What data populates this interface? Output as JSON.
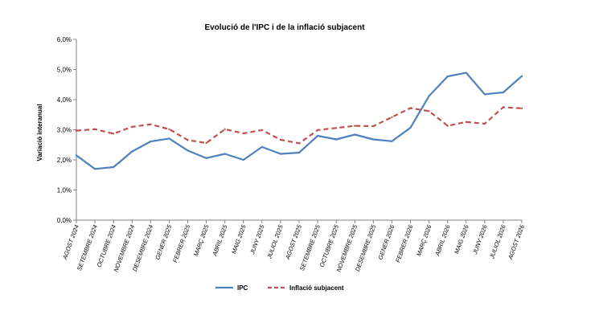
{
  "chart_data": {
    "type": "line",
    "title": "Evolució de l'IPC i de la inflació subjacent",
    "xlabel": "",
    "ylabel": "Variació interanual",
    "ylim": [
      0,
      6
    ],
    "yticks": [
      "0,0%",
      "1,0%",
      "2,0%",
      "3,0%",
      "4,0%",
      "5,0%",
      "6,0%"
    ],
    "grid": false,
    "legend_position": "bottom",
    "categories": [
      "AGOST 2024",
      "SETEMBRE 2024",
      "OCTUBRE 2024",
      "NOVEMBRE 2024",
      "DESEMBRE 2024",
      "GENER 2025",
      "FEBRER 2025",
      "MARÇ 2025",
      "ABRIL 2025",
      "MAIG 2025",
      "JUNY 2025",
      "JULIOL 2025",
      "AGOST 2025",
      "SETEMBRE 2025",
      "OCTUBRE 2025",
      "NOVEMBRE 2025",
      "DESEMBRE 2025",
      "GENER 2026",
      "FEBRER 2026",
      "MARÇ 2026",
      "ABRIL 2026",
      "MAIG 2026",
      "JUNY 2026",
      "JULIOL 2026",
      "AGOST 2026"
    ],
    "series": [
      {
        "name": "IPC",
        "color": "#4f81bd",
        "style": "solid",
        "values": [
          2.15,
          1.7,
          1.76,
          2.28,
          2.61,
          2.71,
          2.31,
          2.06,
          2.2,
          2.0,
          2.43,
          2.2,
          2.24,
          2.8,
          2.68,
          2.84,
          2.68,
          2.62,
          3.07,
          4.12,
          4.77,
          4.89,
          4.18,
          4.24,
          4.78
        ]
      },
      {
        "name": "Inflació subjacent",
        "color": "#c0504d",
        "style": "dashed",
        "values": [
          2.97,
          3.02,
          2.87,
          3.1,
          3.18,
          3.02,
          2.66,
          2.56,
          3.02,
          2.88,
          2.99,
          2.67,
          2.55,
          2.99,
          3.06,
          3.13,
          3.12,
          3.42,
          3.72,
          3.62,
          3.13,
          3.26,
          3.2,
          3.75,
          3.71
        ]
      }
    ]
  }
}
